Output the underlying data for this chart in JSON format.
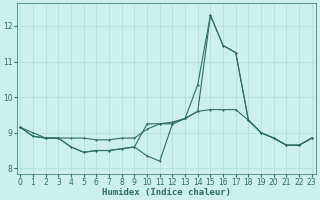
{
  "xlabel": "Humidex (Indice chaleur)",
  "background_color": "#cef0ec",
  "line_color": "#2a7060",
  "grid_color": "#aaddd6",
  "x_values": [
    0,
    1,
    2,
    3,
    4,
    5,
    6,
    7,
    8,
    9,
    10,
    11,
    12,
    13,
    14,
    15,
    16,
    17,
    18,
    19,
    20,
    21,
    22,
    23
  ],
  "series": [
    [
      9.15,
      8.9,
      8.85,
      8.85,
      8.6,
      8.45,
      8.5,
      8.5,
      8.55,
      8.6,
      8.35,
      8.2,
      9.25,
      9.4,
      9.6,
      12.3,
      11.45,
      11.25,
      9.35,
      9.0,
      8.85,
      8.65,
      8.65,
      8.85
    ],
    [
      9.15,
      8.9,
      8.85,
      8.85,
      8.6,
      8.45,
      8.5,
      8.5,
      8.55,
      8.6,
      9.25,
      9.25,
      9.25,
      9.4,
      10.35,
      12.3,
      11.45,
      11.25,
      9.35,
      9.0,
      8.85,
      8.65,
      8.65,
      8.85
    ],
    [
      9.15,
      9.0,
      8.85,
      8.85,
      8.85,
      8.85,
      8.8,
      8.8,
      8.85,
      8.85,
      9.1,
      9.25,
      9.3,
      9.4,
      9.6,
      9.65,
      9.65,
      9.65,
      9.35,
      9.0,
      8.85,
      8.65,
      8.65,
      8.85
    ]
  ],
  "xlim": [
    -0.3,
    23.3
  ],
  "ylim": [
    7.85,
    12.65
  ],
  "yticks": [
    8,
    9,
    10,
    11,
    12
  ],
  "xticks": [
    0,
    1,
    2,
    3,
    4,
    5,
    6,
    7,
    8,
    9,
    10,
    11,
    12,
    13,
    14,
    15,
    16,
    17,
    18,
    19,
    20,
    21,
    22,
    23
  ],
  "markersize": 2.0,
  "linewidth": 0.8,
  "tick_fontsize": 5.5,
  "xlabel_fontsize": 6.5
}
